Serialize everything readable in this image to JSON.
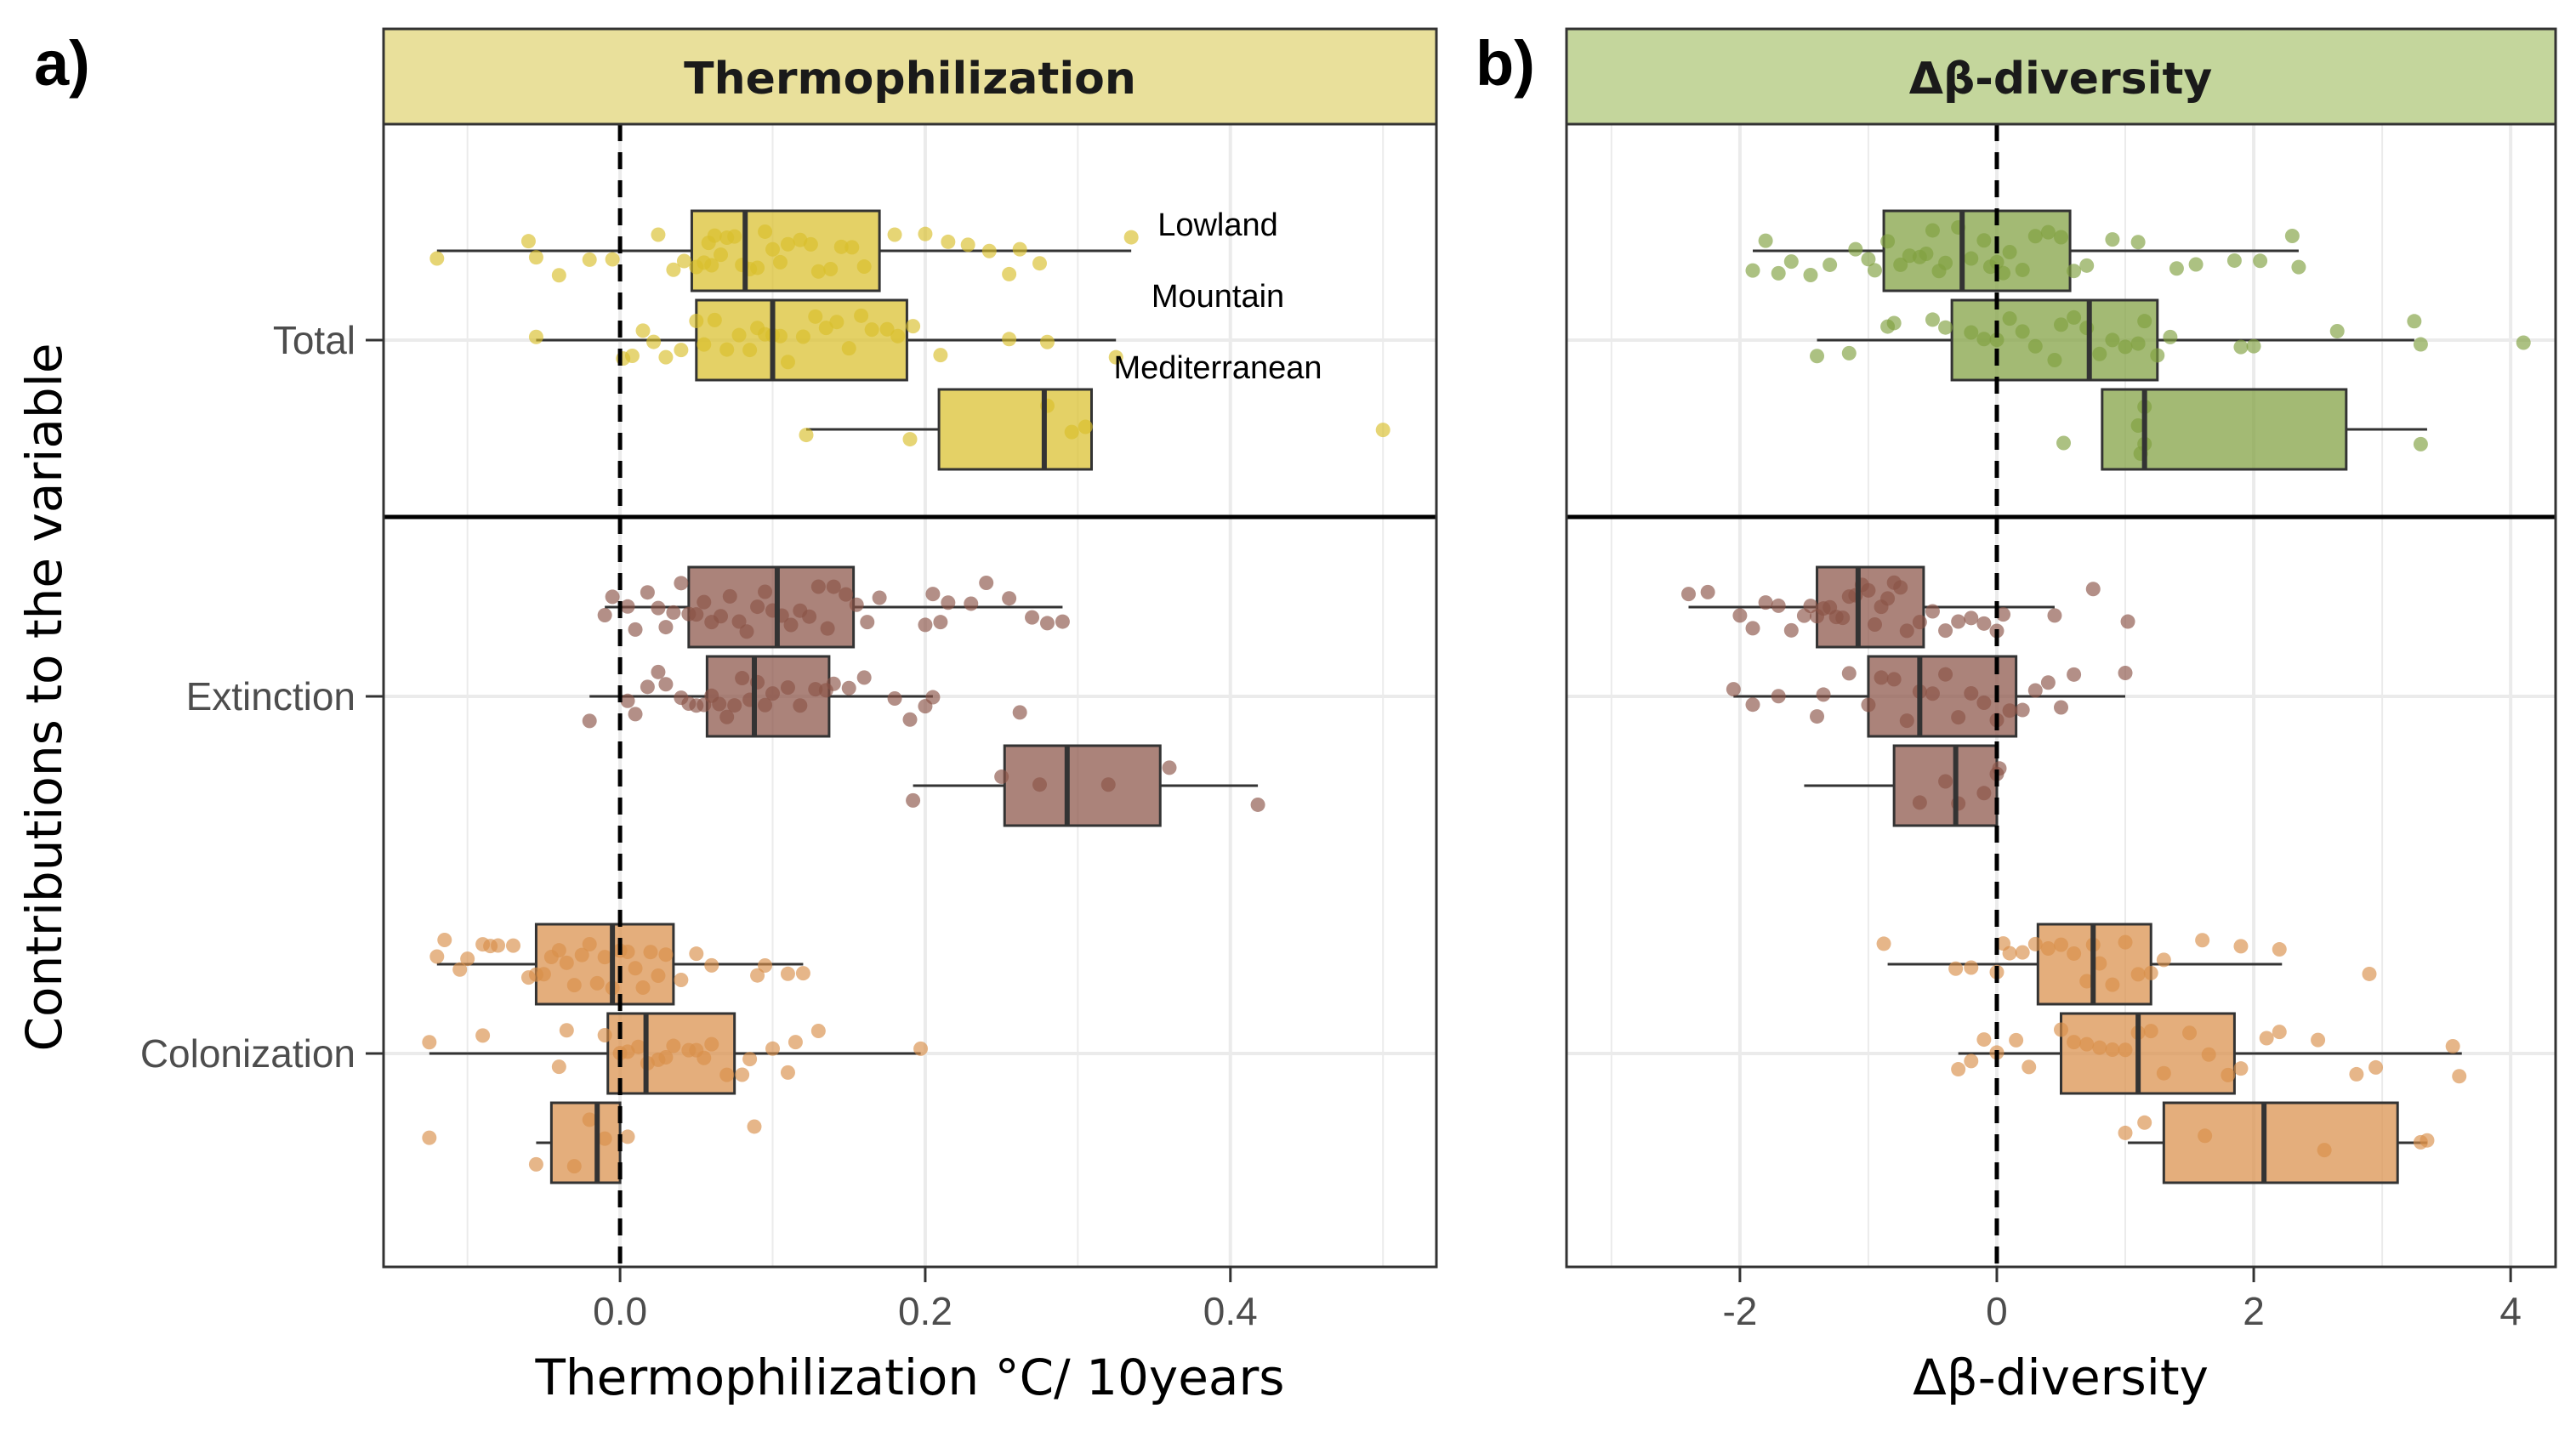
{
  "figure": {
    "y_axis_title": "Contributions to the variable",
    "regions": [
      "Lowland",
      "Mountain",
      "Mediterranean"
    ],
    "row_labels": [
      "Total",
      "Extinction",
      "Colonization"
    ]
  },
  "colors": {
    "thermo_total": "#d9bf2b",
    "beta_total": "#7f9f3f",
    "extinction": "#8b5346",
    "colonization": "#d98f49",
    "thermo_strip": "#e9e09b",
    "beta_strip": "#c4d69c"
  },
  "chart_data": [
    {
      "type": "box",
      "panel_label": "a)",
      "title": "Thermophilization",
      "xlabel": "Thermophilization °C/ 10years",
      "xlim": [
        -0.155,
        0.535
      ],
      "x_ticks": [
        0.0,
        0.2,
        0.4
      ],
      "x_tick_labels": [
        "0.0",
        "0.2",
        "0.4"
      ],
      "reference_line_x": 0,
      "legend": "inline text labels top-right: Lowland, Mountain, Mediterranean",
      "groups": [
        {
          "contribution": "Total",
          "region": "Lowland",
          "color_key": "thermo_total",
          "min": -0.12,
          "q1": 0.047,
          "median": 0.082,
          "q3": 0.17,
          "max": 0.335,
          "points": [
            -0.12,
            -0.06,
            -0.055,
            -0.04,
            -0.02,
            -0.005,
            0.025,
            0.035,
            0.042,
            0.05,
            0.055,
            0.058,
            0.06,
            0.062,
            0.066,
            0.07,
            0.075,
            0.08,
            0.085,
            0.09,
            0.095,
            0.1,
            0.105,
            0.11,
            0.118,
            0.125,
            0.13,
            0.138,
            0.145,
            0.152,
            0.16,
            0.18,
            0.2,
            0.215,
            0.228,
            0.242,
            0.255,
            0.262,
            0.275,
            0.335
          ]
        },
        {
          "contribution": "Total",
          "region": "Mountain",
          "color_key": "thermo_total",
          "min": -0.055,
          "q1": 0.05,
          "median": 0.1,
          "q3": 0.188,
          "max": 0.325,
          "points": [
            -0.055,
            0.002,
            0.008,
            0.015,
            0.022,
            0.03,
            0.04,
            0.05,
            0.055,
            0.062,
            0.07,
            0.078,
            0.085,
            0.09,
            0.095,
            0.1,
            0.105,
            0.11,
            0.12,
            0.128,
            0.135,
            0.142,
            0.15,
            0.158,
            0.165,
            0.175,
            0.182,
            0.192,
            0.21,
            0.255,
            0.28,
            0.325
          ]
        },
        {
          "contribution": "Total",
          "region": "Mediterranean",
          "color_key": "thermo_total",
          "min": 0.122,
          "q1": 0.209,
          "median": 0.278,
          "q3": 0.309,
          "max": 0.309,
          "points": [
            0.122,
            0.19,
            0.28,
            0.296,
            0.305,
            0.5
          ]
        },
        {
          "contribution": "Extinction",
          "region": "Lowland",
          "color_key": "extinction",
          "min": -0.01,
          "q1": 0.045,
          "median": 0.103,
          "q3": 0.153,
          "max": 0.29,
          "points": [
            -0.01,
            -0.005,
            0.005,
            0.01,
            0.018,
            0.025,
            0.03,
            0.035,
            0.04,
            0.045,
            0.05,
            0.055,
            0.06,
            0.066,
            0.072,
            0.078,
            0.083,
            0.09,
            0.095,
            0.1,
            0.106,
            0.112,
            0.118,
            0.124,
            0.13,
            0.136,
            0.14,
            0.148,
            0.155,
            0.162,
            0.17,
            0.2,
            0.205,
            0.21,
            0.215,
            0.23,
            0.24,
            0.255,
            0.27,
            0.28,
            0.29
          ]
        },
        {
          "contribution": "Extinction",
          "region": "Mountain",
          "color_key": "extinction",
          "min": -0.02,
          "q1": 0.057,
          "median": 0.088,
          "q3": 0.137,
          "max": 0.205,
          "points": [
            -0.02,
            0.005,
            0.01,
            0.018,
            0.025,
            0.03,
            0.04,
            0.045,
            0.05,
            0.055,
            0.06,
            0.065,
            0.07,
            0.075,
            0.08,
            0.085,
            0.09,
            0.095,
            0.1,
            0.11,
            0.118,
            0.128,
            0.135,
            0.14,
            0.15,
            0.16,
            0.18,
            0.19,
            0.2,
            0.205,
            0.262
          ]
        },
        {
          "contribution": "Extinction",
          "region": "Mediterranean",
          "color_key": "extinction",
          "min": 0.192,
          "q1": 0.252,
          "median": 0.293,
          "q3": 0.354,
          "max": 0.418,
          "points": [
            0.192,
            0.25,
            0.275,
            0.32,
            0.36,
            0.418
          ]
        },
        {
          "contribution": "Colonization",
          "region": "Lowland",
          "color_key": "colonization",
          "min": -0.12,
          "q1": -0.055,
          "median": -0.005,
          "q3": 0.035,
          "max": 0.12,
          "points": [
            -0.12,
            -0.115,
            -0.105,
            -0.1,
            -0.09,
            -0.085,
            -0.08,
            -0.07,
            -0.06,
            -0.055,
            -0.05,
            -0.045,
            -0.04,
            -0.035,
            -0.03,
            -0.025,
            -0.02,
            -0.015,
            -0.01,
            -0.005,
            0.0,
            0.005,
            0.01,
            0.015,
            0.02,
            0.025,
            0.03,
            0.04,
            0.05,
            0.06,
            0.09,
            0.095,
            0.11,
            0.12
          ]
        },
        {
          "contribution": "Colonization",
          "region": "Mountain",
          "color_key": "colonization",
          "min": -0.125,
          "q1": -0.008,
          "median": 0.017,
          "q3": 0.075,
          "max": 0.197,
          "points": [
            -0.125,
            -0.09,
            -0.04,
            -0.035,
            -0.01,
            0.0,
            0.005,
            0.012,
            0.018,
            0.025,
            0.03,
            0.035,
            0.045,
            0.05,
            0.055,
            0.06,
            0.07,
            0.08,
            0.085,
            0.1,
            0.11,
            0.115,
            0.13,
            0.197
          ]
        },
        {
          "contribution": "Colonization",
          "region": "Mediterranean",
          "color_key": "colonization",
          "min": -0.055,
          "q1": -0.045,
          "median": -0.015,
          "q3": 0.0,
          "max": 0.0,
          "points": [
            -0.125,
            -0.055,
            -0.03,
            -0.02,
            -0.01,
            0.005,
            0.088
          ]
        }
      ]
    },
    {
      "type": "box",
      "panel_label": "b)",
      "title": "Δβ-diversity",
      "xlabel": "Δβ-diversity",
      "xlim": [
        -3.35,
        4.35
      ],
      "x_ticks": [
        -2,
        0,
        2,
        4
      ],
      "x_tick_labels": [
        "-2",
        "0",
        "2",
        "4"
      ],
      "reference_line_x": 0,
      "groups": [
        {
          "contribution": "Total",
          "region": "Lowland",
          "color_key": "beta_total",
          "min": -1.9,
          "q1": -0.88,
          "median": -0.27,
          "q3": 0.57,
          "max": 2.35,
          "points": [
            -1.9,
            -1.8,
            -1.7,
            -1.6,
            -1.45,
            -1.3,
            -1.1,
            -1.0,
            -0.95,
            -0.85,
            -0.75,
            -0.68,
            -0.6,
            -0.55,
            -0.5,
            -0.45,
            -0.4,
            -0.3,
            -0.2,
            -0.1,
            -0.05,
            0.0,
            0.05,
            0.1,
            0.2,
            0.3,
            0.4,
            0.5,
            0.6,
            0.7,
            0.9,
            1.1,
            1.4,
            1.55,
            1.85,
            2.05,
            2.3,
            2.35
          ]
        },
        {
          "contribution": "Total",
          "region": "Mountain",
          "color_key": "beta_total",
          "min": -1.4,
          "q1": -0.35,
          "median": 0.72,
          "q3": 1.25,
          "max": 3.25,
          "points": [
            -1.4,
            -1.15,
            -0.85,
            -0.8,
            -0.5,
            -0.4,
            -0.2,
            -0.1,
            0.0,
            0.1,
            0.2,
            0.3,
            0.45,
            0.5,
            0.6,
            0.7,
            0.8,
            0.9,
            1.0,
            1.1,
            1.15,
            1.25,
            1.35,
            1.9,
            2.0,
            2.65,
            3.25,
            3.3,
            4.1
          ]
        },
        {
          "contribution": "Total",
          "region": "Mediterranean",
          "color_key": "beta_total",
          "min": 0.82,
          "q1": 0.82,
          "median": 1.15,
          "q3": 2.72,
          "max": 3.35,
          "points": [
            0.52,
            1.1,
            1.15,
            1.12,
            1.15,
            3.3
          ]
        },
        {
          "contribution": "Extinction",
          "region": "Lowland",
          "color_key": "extinction",
          "min": -2.4,
          "q1": -1.4,
          "median": -1.08,
          "q3": -0.57,
          "max": 0.45,
          "points": [
            -2.4,
            -2.25,
            -2.0,
            -1.9,
            -1.8,
            -1.7,
            -1.6,
            -1.5,
            -1.45,
            -1.4,
            -1.35,
            -1.3,
            -1.25,
            -1.2,
            -1.15,
            -1.1,
            -1.05,
            -1.0,
            -0.95,
            -0.9,
            -0.85,
            -0.8,
            -0.75,
            -0.7,
            -0.6,
            -0.5,
            -0.4,
            -0.3,
            -0.2,
            -0.1,
            0.0,
            0.05,
            0.45,
            0.75,
            1.02
          ]
        },
        {
          "contribution": "Extinction",
          "region": "Mountain",
          "color_key": "extinction",
          "min": -2.05,
          "q1": -1.0,
          "median": -0.6,
          "q3": 0.15,
          "max": 1.0,
          "points": [
            -2.05,
            -1.9,
            -1.7,
            -1.4,
            -1.35,
            -1.15,
            -1.0,
            -0.9,
            -0.8,
            -0.7,
            -0.6,
            -0.5,
            -0.4,
            -0.3,
            -0.2,
            -0.1,
            0.0,
            0.1,
            0.2,
            0.3,
            0.4,
            0.5,
            0.6,
            1.0
          ]
        },
        {
          "contribution": "Extinction",
          "region": "Mediterranean",
          "color_key": "extinction",
          "min": -1.5,
          "q1": -0.8,
          "median": -0.32,
          "q3": 0.0,
          "max": 0.0,
          "points": [
            -0.6,
            -0.4,
            -0.3,
            -0.1,
            0.0,
            0.02
          ]
        },
        {
          "contribution": "Colonization",
          "region": "Lowland",
          "color_key": "colonization",
          "min": -0.85,
          "q1": 0.32,
          "median": 0.75,
          "q3": 1.2,
          "max": 2.22,
          "points": [
            -0.88,
            -0.32,
            -0.2,
            0.0,
            0.05,
            0.1,
            0.2,
            0.3,
            0.4,
            0.5,
            0.6,
            0.7,
            0.75,
            0.8,
            0.9,
            1.0,
            1.1,
            1.2,
            1.3,
            1.6,
            1.9,
            2.2,
            2.9
          ]
        },
        {
          "contribution": "Colonization",
          "region": "Mountain",
          "color_key": "colonization",
          "min": -0.3,
          "q1": 0.5,
          "median": 1.1,
          "q3": 1.85,
          "max": 3.62,
          "points": [
            -0.3,
            -0.2,
            -0.1,
            0.0,
            0.15,
            0.25,
            0.5,
            0.6,
            0.7,
            0.8,
            0.9,
            1.0,
            1.1,
            1.2,
            1.3,
            1.5,
            1.65,
            1.8,
            1.9,
            2.1,
            2.2,
            2.5,
            2.8,
            2.95,
            3.55,
            3.6
          ]
        },
        {
          "contribution": "Colonization",
          "region": "Mediterranean",
          "color_key": "colonization",
          "min": 1.02,
          "q1": 1.3,
          "median": 2.08,
          "q3": 3.12,
          "max": 3.35,
          "points": [
            1.0,
            1.15,
            1.62,
            2.55,
            3.3,
            3.35
          ]
        }
      ]
    }
  ]
}
